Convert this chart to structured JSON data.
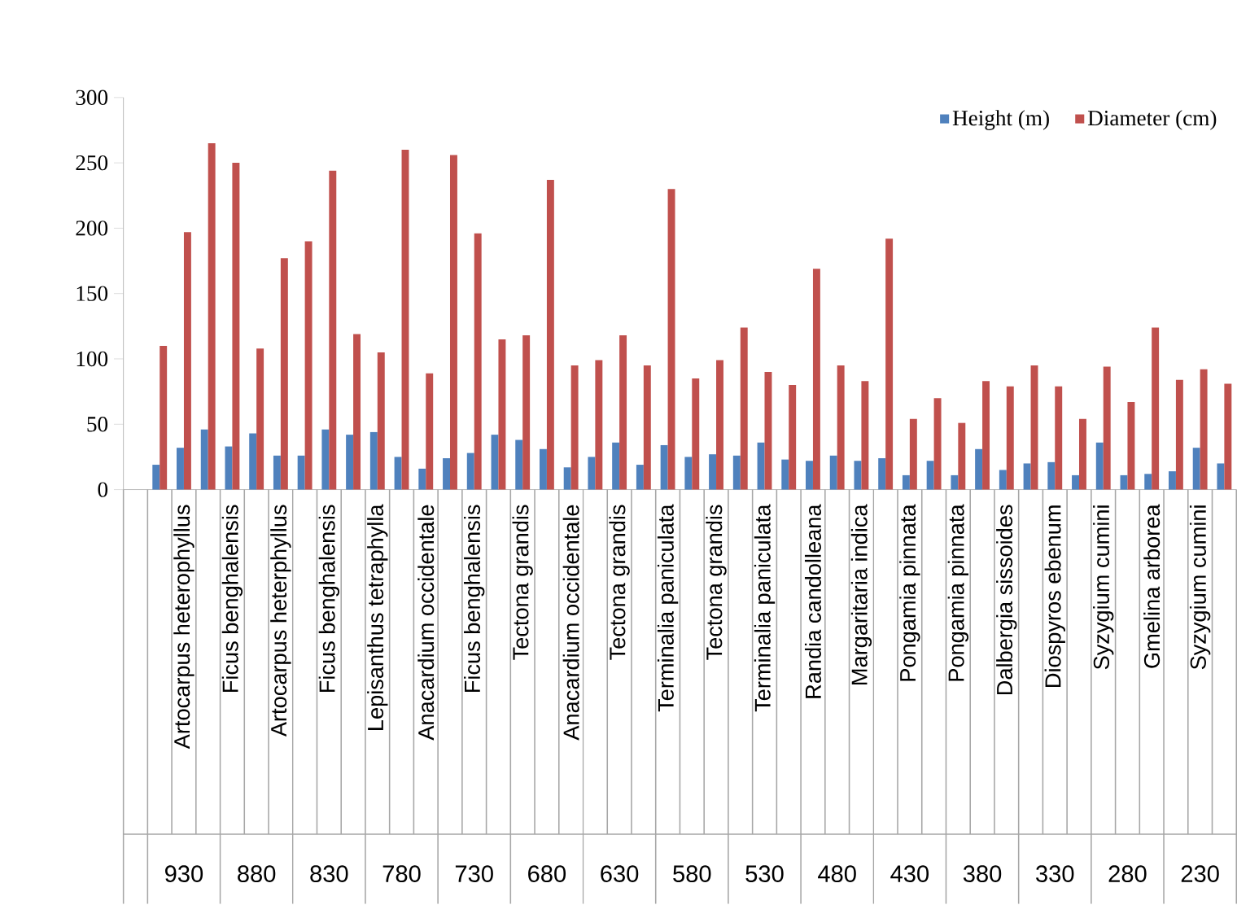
{
  "chart_data": {
    "type": "bar",
    "categories": [
      null,
      null,
      "Artocarpus heterophyllus",
      null,
      "Ficus benghalensis",
      null,
      "Artocarpus heterphyllus",
      null,
      "Ficus benghalensis",
      null,
      "Lepisanthus tetraphylla",
      null,
      "Anacardium occidentale",
      null,
      "Ficus benghalensis",
      null,
      "Tectona grandis",
      null,
      "Anacardium occidentale",
      null,
      "Tectona grandis",
      null,
      "Terminalia paniculata",
      null,
      "Tectona grandis",
      null,
      "Terminalia paniculata",
      null,
      "Randia candolleana",
      null,
      "Margaritaria indica",
      null,
      "Pongamia pinnata",
      null,
      "Pongamia pinnata",
      null,
      "Dalbergia sissoides",
      null,
      "Diospyros ebenum",
      null,
      "Syzygium cumini",
      null,
      "Gmelina arborea",
      null,
      "Syzygium cumini",
      null
    ],
    "series": [
      {
        "name": "Height (m)",
        "color": "#4f81bd",
        "values": [
          null,
          19,
          32,
          46,
          33,
          43,
          26,
          26,
          46,
          42,
          44,
          25,
          16,
          24,
          28,
          42,
          38,
          31,
          17,
          25,
          36,
          19,
          34,
          25,
          27,
          26,
          36,
          23,
          22,
          26,
          22,
          24,
          11,
          22,
          11,
          31,
          15,
          20,
          21,
          11,
          36,
          11,
          12,
          14,
          32,
          20
        ]
      },
      {
        "name": "Diameter (cm)",
        "color": "#c0504d",
        "values": [
          null,
          110,
          197,
          265,
          250,
          108,
          177,
          190,
          244,
          119,
          105,
          260,
          89,
          256,
          196,
          115,
          118,
          237,
          95,
          99,
          118,
          95,
          230,
          85,
          99,
          124,
          90,
          80,
          169,
          95,
          83,
          192,
          54,
          70,
          51,
          83,
          79,
          95,
          79,
          54,
          94,
          67,
          124,
          84,
          92,
          81
        ]
      }
    ],
    "ylim": [
      0,
      300
    ],
    "yticks": [
      0,
      50,
      100,
      150,
      200,
      250,
      300
    ],
    "legend": "top right",
    "annotations": [
      "930",
      "880",
      "830",
      "780",
      "730",
      "680",
      "630",
      "580",
      "530",
      "480",
      "430",
      "380",
      "330",
      "280",
      "230"
    ]
  }
}
